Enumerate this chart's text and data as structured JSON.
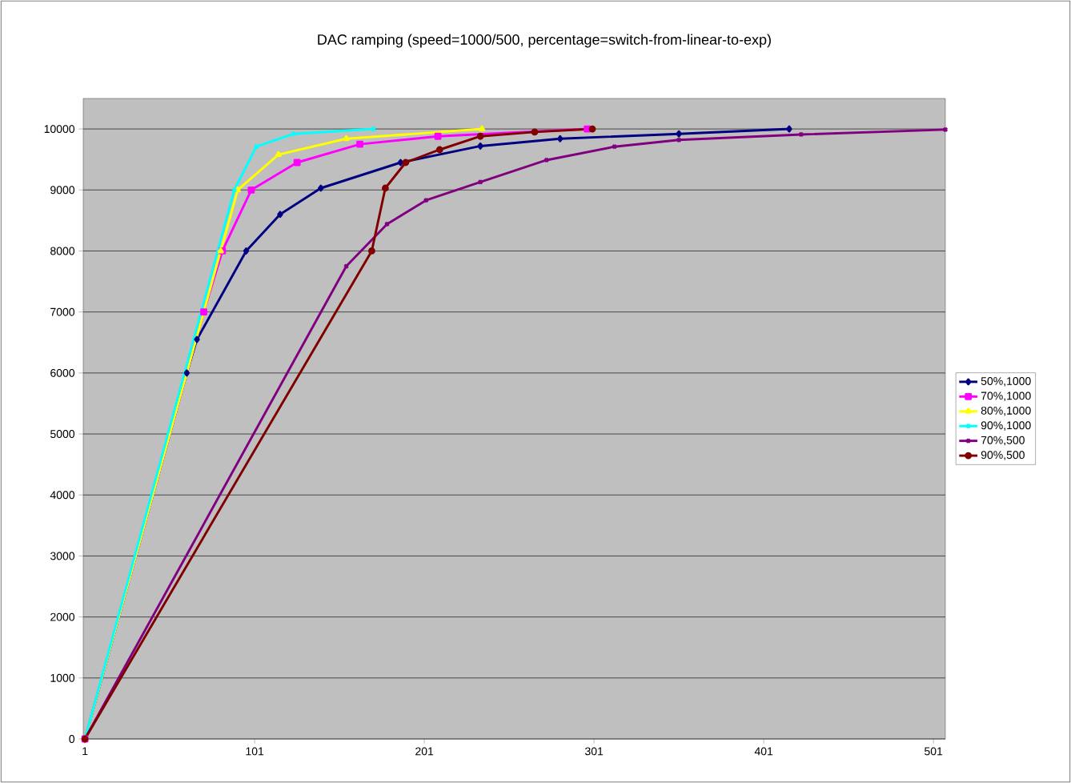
{
  "chart_data": {
    "type": "line",
    "title": "DAC ramping (speed=1000/500, percentage=switch-from-linear-to-exp)",
    "xlim": [
      0,
      508
    ],
    "xticks": [
      1,
      101,
      201,
      301,
      401,
      501
    ],
    "ylim": [
      0,
      10500
    ],
    "yticks": [
      0,
      1000,
      2000,
      3000,
      4000,
      5000,
      6000,
      7000,
      8000,
      9000,
      10000
    ],
    "grid": "y",
    "legend": "right",
    "line_style": "solid",
    "series": [
      {
        "name": "50%,1000",
        "color": "#000080",
        "marker": "diamond",
        "x": [
          1,
          61,
          67,
          96,
          116,
          140,
          187,
          234,
          281,
          351,
          416
        ],
        "values": [
          0,
          6000,
          6550,
          8000,
          8600,
          9030,
          9450,
          9720,
          9840,
          9920,
          10000
        ]
      },
      {
        "name": "70%,1000",
        "color": "#ff00ff",
        "marker": "square",
        "x": [
          1,
          71,
          82,
          99,
          126,
          163,
          209,
          297
        ],
        "values": [
          0,
          7000,
          8000,
          9000,
          9450,
          9750,
          9880,
          10000
        ]
      },
      {
        "name": "80%,1000",
        "color": "#ffff00",
        "marker": "triangle",
        "x": [
          1,
          81,
          91,
          115,
          155,
          235
        ],
        "values": [
          0,
          8000,
          9000,
          9580,
          9840,
          10000
        ]
      },
      {
        "name": "90%,1000",
        "color": "#00ffff",
        "marker": "cross",
        "x": [
          1,
          89,
          102,
          124,
          171
        ],
        "values": [
          0,
          9000,
          9710,
          9920,
          10000
        ]
      },
      {
        "name": "70%,500",
        "color": "#800080",
        "marker": "cross",
        "x": [
          1,
          155,
          179,
          202,
          234,
          273,
          313,
          351,
          423,
          508
        ],
        "values": [
          0,
          7750,
          8440,
          8830,
          9130,
          9490,
          9710,
          9820,
          9910,
          9990
        ]
      },
      {
        "name": "90%,500",
        "color": "#800000",
        "marker": "circle",
        "x": [
          1,
          170,
          178,
          190,
          210,
          234,
          266,
          300
        ],
        "values": [
          0,
          8000,
          9030,
          9450,
          9660,
          9880,
          9950,
          10000
        ]
      }
    ]
  }
}
